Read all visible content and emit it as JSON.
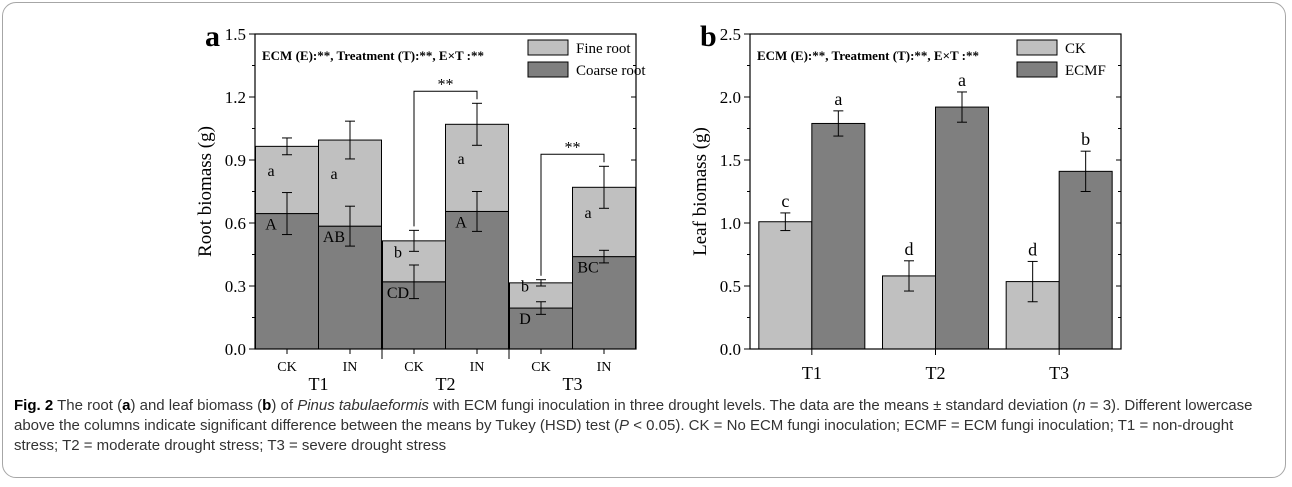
{
  "caption": {
    "fig_label": "Fig. 2",
    "p1": " The root (",
    "a": "a",
    "p2": ") and leaf biomass (",
    "b": "b",
    "p3": ") of ",
    "species": "Pinus tabulaeformis",
    "p4": " with ECM fungi inoculation in three drought levels. The data are the means ± standard deviation (",
    "n": "n",
    "p5": " = 3). Different lowercase above the columns indicate significant difference between the means by Tukey (HSD) test (",
    "P": "P",
    "p6": " < 0.05). CK = No ECM fungi inoculation; ECMF = ECM fungi inoculation; T1 = non-drought stress; T2 = moderate drought stress; T3 = severe drought stress"
  },
  "chart_data": [
    {
      "type": "bar",
      "stacked": true,
      "panel_label": "a",
      "annotation": "ECM (E):**, Treatment (T):**, E×T :**",
      "ylabel": "Root biomass (g)",
      "xlabel": "",
      "ylim": [
        0,
        1.5
      ],
      "yticks": [
        "0.0",
        "0.3",
        "0.6",
        "0.9",
        "1.2",
        "1.5"
      ],
      "groups": [
        "T1",
        "T2",
        "T3"
      ],
      "categories": [
        "CK",
        "IN",
        "CK",
        "IN",
        "CK",
        "IN"
      ],
      "series": [
        {
          "name": "Coarse root",
          "color": "#7f7f7f",
          "values": [
            0.645,
            0.585,
            0.32,
            0.655,
            0.195,
            0.44
          ],
          "errors": [
            0.1,
            0.095,
            0.08,
            0.095,
            0.03,
            0.03
          ],
          "letters": [
            "A",
            "AB",
            "CD",
            "A",
            "D",
            "BC"
          ]
        },
        {
          "name": "Fine root",
          "color": "#c0c0c0",
          "values": [
            0.32,
            0.41,
            0.195,
            0.415,
            0.12,
            0.33
          ],
          "errors": [
            0.04,
            0.09,
            0.05,
            0.1,
            0.015,
            0.1
          ],
          "letters": [
            "a",
            "a",
            "b",
            "a",
            "b",
            "a"
          ]
        }
      ],
      "significance": [
        {
          "label": "**"
        },
        {
          "label": "**"
        }
      ],
      "legend_position": "top-right"
    },
    {
      "type": "bar",
      "panel_label": "b",
      "annotation": "ECM (E):**, Treatment (T):**, E×T :**",
      "ylabel": "Leaf biomass (g)",
      "xlabel": "",
      "ylim": [
        0,
        2.5
      ],
      "yticks": [
        "0.0",
        "0.5",
        "1.0",
        "1.5",
        "2.0",
        "2.5"
      ],
      "categories": [
        "T1",
        "T2",
        "T3"
      ],
      "series": [
        {
          "name": "CK",
          "color": "#c0c0c0",
          "values": [
            1.01,
            0.58,
            0.535
          ],
          "errors": [
            0.07,
            0.12,
            0.16
          ],
          "letters": [
            "c",
            "d",
            "d"
          ]
        },
        {
          "name": "ECMF",
          "color": "#7f7f7f",
          "values": [
            1.79,
            1.92,
            1.41
          ],
          "errors": [
            0.1,
            0.12,
            0.16
          ],
          "letters": [
            "a",
            "a",
            "b"
          ]
        }
      ],
      "legend_position": "top-right"
    }
  ]
}
